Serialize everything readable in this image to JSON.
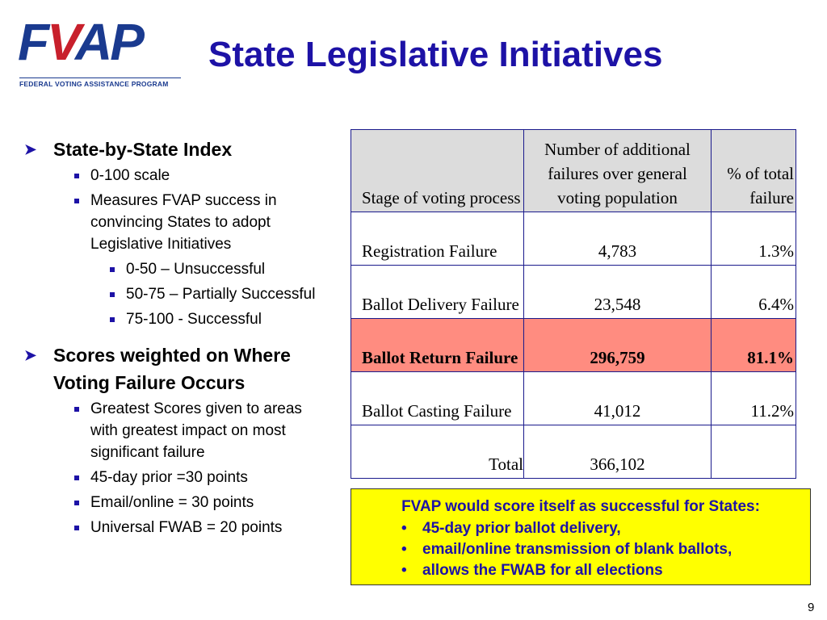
{
  "logo": {
    "letters_blue1": "F",
    "letters_red": "V",
    "letters_blue2": "AP",
    "subtitle": "FEDERAL VOTING ASSISTANCE PROGRAM"
  },
  "title": "State Legislative Initiatives",
  "bullets": {
    "section1": {
      "heading": "State-by-State Index",
      "items": [
        "0-100 scale",
        "Measures FVAP success in convincing States to adopt Legislative Initiatives"
      ],
      "subitems": [
        "0-50 – Unsuccessful",
        "50-75 – Partially Successful",
        "75-100 - Successful"
      ]
    },
    "section2": {
      "heading": "Scores weighted on Where Voting Failure Occurs",
      "items": [
        "Greatest Scores given to areas with greatest impact on most significant failure",
        "45-day prior =30 points",
        "Email/online = 30 points",
        "Universal FWAB = 20 points"
      ]
    }
  },
  "table": {
    "headers": [
      "Stage of voting process",
      "Number of additional failures over general voting population",
      "% of total failure"
    ],
    "rows": [
      {
        "stage": "Registration Failure",
        "number": "4,783",
        "percent": "1.3%"
      },
      {
        "stage": "Ballot Delivery Failure",
        "number": "23,548",
        "percent": "6.4%"
      },
      {
        "stage": "Ballot Return Failure",
        "number": "296,759",
        "percent": "81.1%"
      },
      {
        "stage": "Ballot Casting Failure",
        "number": "41,012",
        "percent": "11.2%"
      }
    ],
    "total": {
      "label": "Total",
      "number": "366,102",
      "percent": ""
    },
    "highlight_color": "#ff8c80",
    "header_bg": "#dcdcdc"
  },
  "callout": {
    "heading": "FVAP would score itself as successful for States:",
    "items": [
      "45-day prior ballot delivery,",
      "email/online transmission of blank ballots,",
      "allows the FWAB for all elections"
    ],
    "bg_color": "#ffff00"
  },
  "page_number": "9"
}
